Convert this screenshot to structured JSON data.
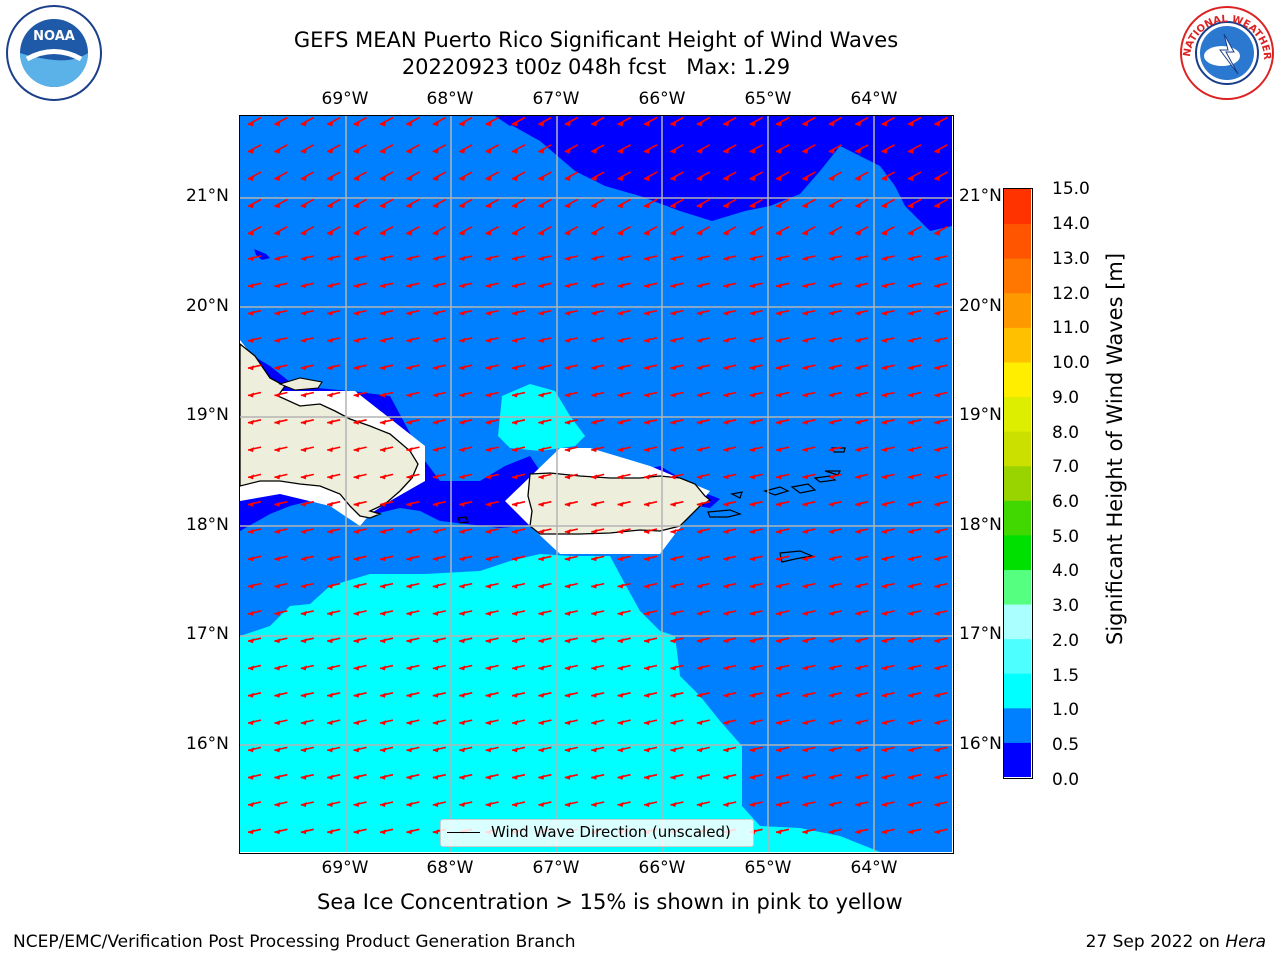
{
  "title": {
    "line1": "GEFS MEAN Puerto Rico Significant Height of Wind Waves",
    "line2": "20220923 t00z 048h fcst   Max: 1.29"
  },
  "logos": {
    "noaa": "NOAA",
    "nws": "NATIONAL WEATHER SERVICE"
  },
  "map": {
    "lon_range": [
      -70.0,
      -63.25
    ],
    "lat_range": [
      15.0,
      21.75
    ],
    "lon_ticks": [
      "69°W",
      "68°W",
      "67°W",
      "66°W",
      "65°W",
      "64°W"
    ],
    "lat_ticks": [
      "21°N",
      "20°N",
      "19°N",
      "18°N",
      "17°N",
      "16°N"
    ],
    "gridlines": true,
    "land_color": "#eeeedc",
    "arrow_color": "#ff0000",
    "arrow_direction": "westward, slightly south",
    "regions": [
      {
        "name": "open ocean",
        "band": "0.5-1.0",
        "color": "#0080ff"
      },
      {
        "name": "north-east lee area",
        "band": "0.0-0.5",
        "color": "#0000ff"
      },
      {
        "name": "south Caribbean",
        "band": "1.0-1.5",
        "color": "#00ffff"
      },
      {
        "name": "Mona Passage patch",
        "band": "1.0-1.5",
        "color": "#00ffff"
      }
    ]
  },
  "legend": {
    "label": "Wind Wave Direction (unscaled)",
    "line_color": "#000000"
  },
  "colorbar": {
    "label": "Significant Height of Wind Waves [m]",
    "ticks": [
      "15.0",
      "14.0",
      "13.0",
      "12.0",
      "11.0",
      "10.0",
      "9.0",
      "8.0",
      "7.0",
      "6.0",
      "5.0",
      "4.0",
      "3.0",
      "2.0",
      "1.5",
      "1.0",
      "0.5",
      "0.0"
    ],
    "colors": [
      "#0000ff",
      "#0080ff",
      "#00ffff",
      "#4dffff",
      "#aaffff",
      "#55ff80",
      "#00e000",
      "#40d800",
      "#9ad400",
      "#cce000",
      "#ddee00",
      "#ffee00",
      "#ffc000",
      "#ff9900",
      "#ff7700",
      "#ff5500",
      "#ff3300"
    ],
    "bounds": [
      0.0,
      0.5,
      1.0,
      1.5,
      2.0,
      3.0,
      4.0,
      5.0,
      6.0,
      7.0,
      8.0,
      9.0,
      10.0,
      11.0,
      12.0,
      13.0,
      14.0,
      15.0
    ]
  },
  "note": "Sea Ice Concentration > 15% is shown in pink to yellow",
  "footer": {
    "left": "NCEP/EMC/Verification Post Processing Product Generation Branch",
    "date": "27 Sep 2022 on ",
    "machine": "Hera"
  }
}
